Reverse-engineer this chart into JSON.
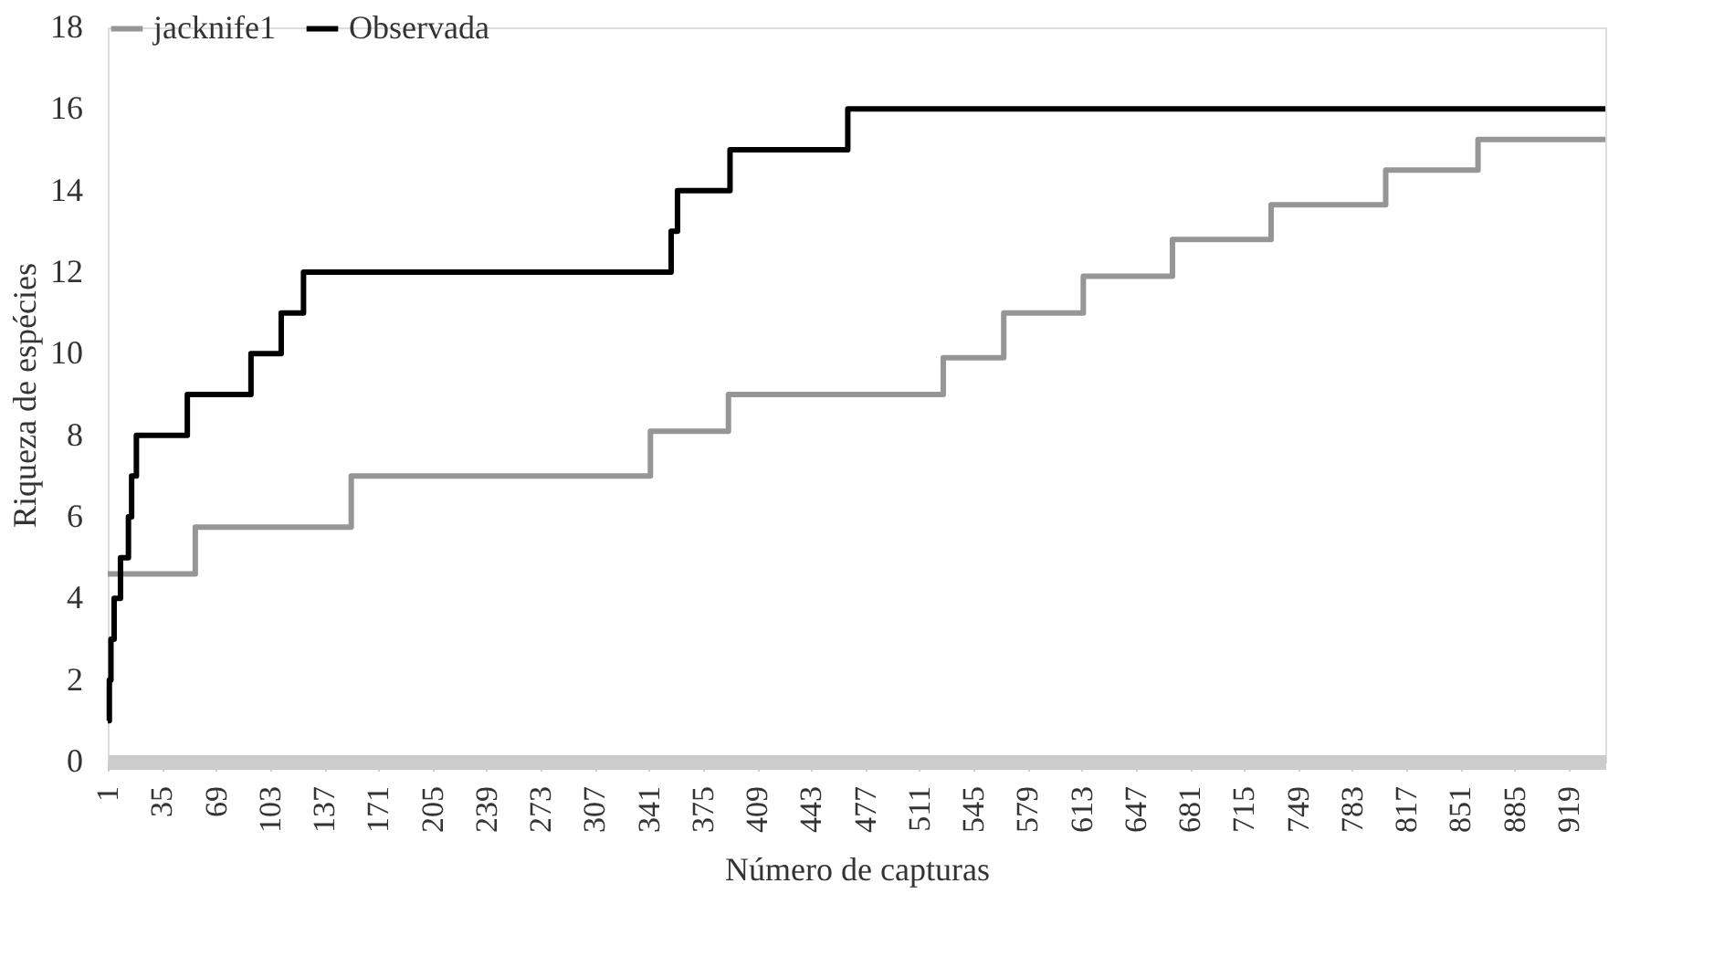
{
  "chart_data": {
    "type": "step",
    "xlabel": "Número de capturas",
    "ylabel": "Riqueza de espécies",
    "xlim": [
      1,
      942
    ],
    "xticks": [
      1,
      35,
      69,
      103,
      137,
      171,
      205,
      239,
      273,
      307,
      341,
      375,
      409,
      443,
      477,
      511,
      545,
      579,
      613,
      647,
      681,
      715,
      749,
      783,
      817,
      851,
      885,
      919
    ],
    "ylim": [
      0,
      18
    ],
    "yticks": [
      0,
      2,
      4,
      6,
      8,
      10,
      12,
      14,
      16,
      18
    ],
    "grid": false,
    "legend": "top",
    "marker": "none",
    "line_style": "solid",
    "series": [
      {
        "name": "jacknife1",
        "color": "#969696",
        "x": [
          1,
          56,
          154,
          342,
          391,
          526,
          564,
          614,
          670,
          732,
          804,
          862,
          942
        ],
        "values": [
          4.6,
          5.75,
          7.0,
          8.1,
          9.0,
          9.9,
          11.0,
          11.9,
          12.8,
          13.65,
          14.5,
          15.25,
          15.25
        ]
      },
      {
        "name": "Observada",
        "color": "#000000",
        "x": [
          1,
          2,
          3,
          5,
          9,
          14,
          16,
          19,
          51,
          91,
          110,
          124,
          355,
          359,
          392,
          466,
          942
        ],
        "values": [
          1,
          2,
          3,
          4,
          5,
          6,
          7,
          8,
          9,
          10,
          11,
          12,
          13,
          14,
          15,
          16,
          16
        ]
      }
    ]
  }
}
